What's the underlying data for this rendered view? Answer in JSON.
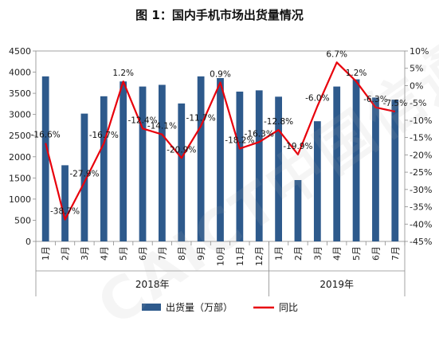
{
  "title": "图 1：国内手机市场出货量情况",
  "chart_data": {
    "type": "bar",
    "categories": [
      "1月",
      "2月",
      "3月",
      "4月",
      "5月",
      "6月",
      "7月",
      "8月",
      "9月",
      "10月",
      "11月",
      "12月",
      "1月",
      "2月",
      "3月",
      "4月",
      "5月",
      "6月",
      "7月"
    ],
    "groups": [
      {
        "label": "2018年",
        "count": 12
      },
      {
        "label": "2019年",
        "count": 7
      }
    ],
    "series": [
      {
        "name": "出货量（万部）",
        "type": "bar",
        "axis": "left",
        "color": "#2E5A8C",
        "values": [
          3900,
          1800,
          3020,
          3430,
          3780,
          3660,
          3700,
          3260,
          3900,
          3860,
          3540,
          3570,
          3420,
          1450,
          2840,
          3660,
          3830,
          3400,
          3350
        ]
      },
      {
        "name": "同比",
        "type": "line",
        "axis": "right",
        "color": "#E8000B",
        "values": [
          -16.6,
          -38.7,
          -27.9,
          -16.7,
          1.2,
          -12.4,
          -14.1,
          -20.9,
          -11.7,
          0.9,
          -18.2,
          -16.3,
          -12.8,
          -19.9,
          -6.0,
          6.7,
          1.2,
          -6.3,
          -7.5
        ],
        "labels": [
          "-16.6%",
          "-38.7%",
          "-27.9%",
          "-16.7%",
          "1.2%",
          "-12.4%",
          "-14.1%",
          "-20.9%",
          "-11.7%",
          "0.9%",
          "-18.2%",
          "-16.3%",
          "-12.8%",
          "-19.9%",
          "-6.0%",
          "6.7%",
          "1.2%",
          "-6.3%",
          "-7.5%"
        ]
      }
    ],
    "y_left": {
      "min": 0,
      "max": 4500,
      "ticks": [
        "0",
        "500",
        "1000",
        "1500",
        "2000",
        "2500",
        "3000",
        "3500",
        "4000",
        "4500"
      ]
    },
    "y_right": {
      "min": -45,
      "max": 10,
      "ticks": [
        "-45%",
        "-40%",
        "-35%",
        "-30%",
        "-25%",
        "-20%",
        "-15%",
        "-10%",
        "-5%",
        "0%",
        "5%",
        "10%"
      ]
    },
    "legend": {
      "position": "bottom"
    },
    "grid": false
  },
  "watermark": "CAICT中国信通院"
}
